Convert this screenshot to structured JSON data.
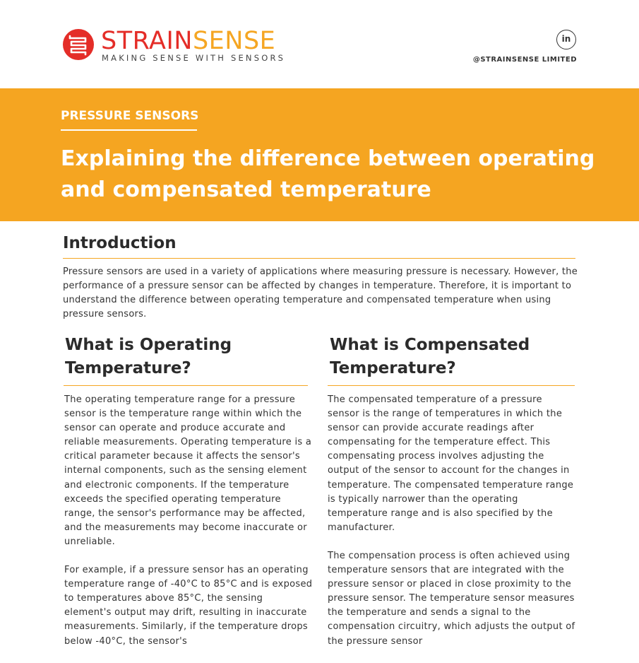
{
  "header": {
    "brand_part1": "STRAIN",
    "brand_part2": "SENSE",
    "tagline": "MAKING SENSE WITH SENSORS",
    "social_icon": "linkedin-icon",
    "social_icon_text": "in",
    "social_handle": "@STRAINSENSE LIMITED"
  },
  "banner": {
    "category": "PRESSURE SENSORS",
    "title": "Explaining the difference between operating and compensated temperature"
  },
  "introduction": {
    "heading": "Introduction",
    "body": "Pressure sensors are used in a variety of applications where measuring pressure is necessary. However, the performance of a pressure sensor can be affected by changes in temperature. Therefore, it is important to understand the difference between operating temperature and compensated temperature when using pressure sensors."
  },
  "operating": {
    "heading": "What is Operating Temperature?",
    "paragraphs": [
      "The operating temperature range for a pressure sensor is the temperature range within which the sensor can operate and produce accurate and reliable measurements. Operating temperature is a critical parameter because it affects the sensor's internal components, such as the sensing element and electronic components. If the temperature exceeds the specified operating temperature range, the sensor's performance may be affected, and the measurements may become inaccurate or unreliable.",
      "For example, if a pressure sensor has an operating temperature range of -40°C to 85°C and is exposed to temperatures above 85°C, the sensing element's output may drift, resulting in inaccurate measurements. Similarly, if the temperature drops below -40°C, the sensor's"
    ]
  },
  "compensated": {
    "heading": "What is Compensated Temperature?",
    "paragraphs": [
      "The compensated temperature of a pressure sensor is the range of temperatures in which the sensor can provide accurate readings after compensating for the temperature effect. This compensating process involves adjusting the output of the sensor to account for the changes in temperature. The compensated temperature range is typically narrower than the operating temperature range and is also specified by the manufacturer.",
      "The compensation process is often achieved using temperature sensors that are integrated with the pressure sensor or placed in close proximity to the pressure sensor. The temperature sensor measures the temperature and sends a signal to the compensation circuitry, which adjusts the output of the pressure sensor"
    ]
  },
  "colors": {
    "brand_red": "#e42d28",
    "brand_orange": "#f5a623",
    "banner": "#f5a521"
  }
}
